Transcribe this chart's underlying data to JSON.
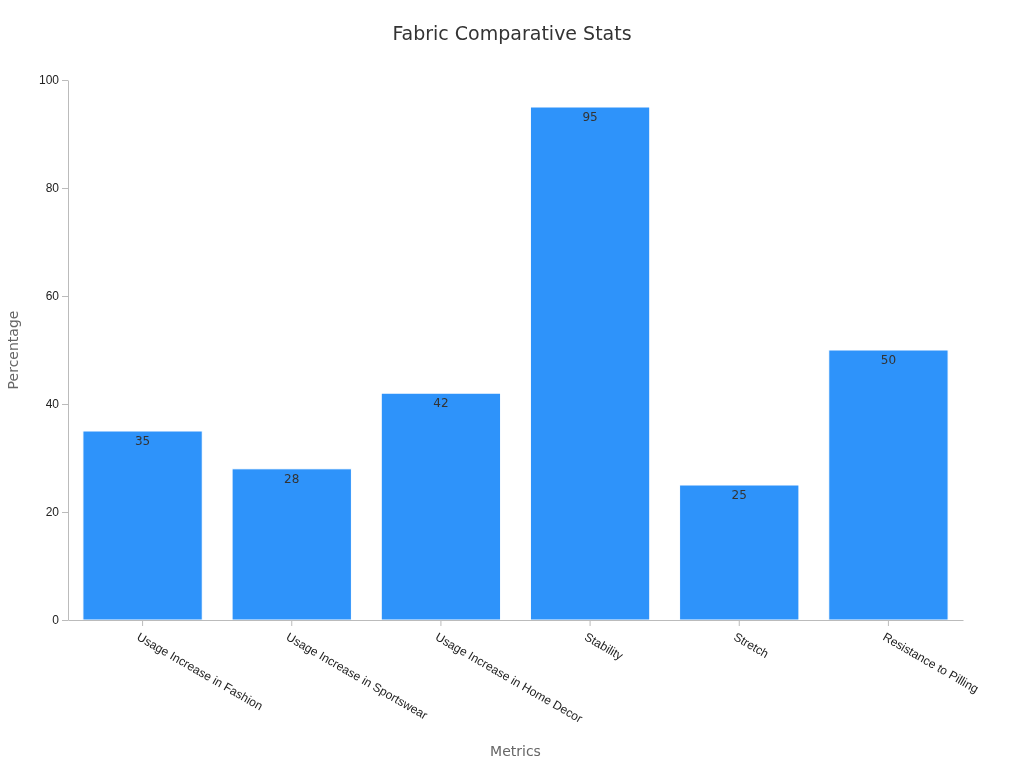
{
  "chart_data": {
    "type": "bar",
    "title": "Fabric Comparative Stats",
    "xlabel": "Metrics",
    "ylabel": "Percentage",
    "categories": [
      "Usage Increase in Fashion",
      "Usage Increase in Sportswear",
      "Usage Increase in Home Decor",
      "Stability",
      "Stretch",
      "Resistance to Pilling"
    ],
    "values": [
      35,
      28,
      42,
      95,
      25,
      50
    ],
    "color": "#2e93fa",
    "ylim": [
      0,
      100
    ],
    "yticks": [
      0,
      20,
      40,
      60,
      80,
      100
    ],
    "grid": false,
    "data_labels": true
  }
}
